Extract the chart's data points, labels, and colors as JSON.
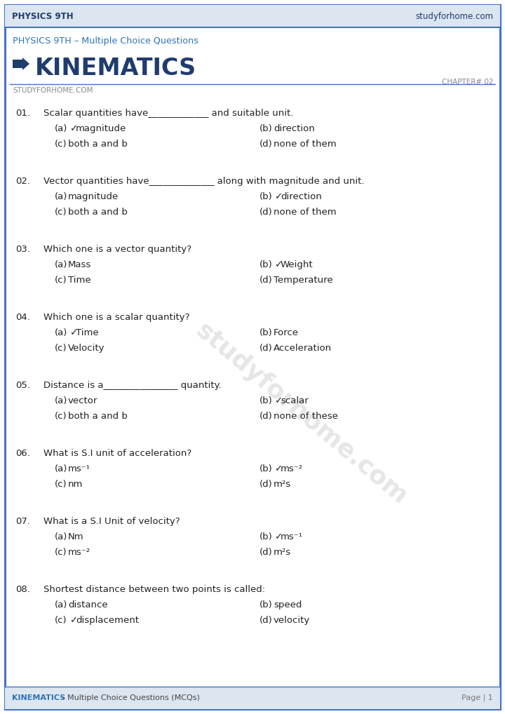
{
  "bg_color": "#ffffff",
  "border_color": "#4472c4",
  "top_bar_bg": "#dce6f1",
  "top_bar_text_left": "PHYSICS 9TH",
  "top_bar_text_right": "studyforhome.com",
  "top_bar_color": "#1f3c6e",
  "subtitle": "PHYSICS 9TH – Multiple Choice Questions",
  "subtitle_color": "#2e75b6",
  "title": "KINEMATICS",
  "title_color": "#1f3c6e",
  "arrow_color": "#1f3c6e",
  "chapter": "CHAPTER# 02",
  "chapter_color": "#888888",
  "website": "STUDYFORHOME.COM",
  "website_color": "#888888",
  "footer_left": "KINEMATICS",
  "footer_left_color": "#2e75b6",
  "footer_sep": " - Multiple Choice Questions (MCQs)",
  "footer_sep_color": "#444444",
  "footer_right": "Page | 1",
  "footer_right_color": "#777777",
  "watermark_text": "studyforhome.com",
  "watermark_color": "#c8c8c8",
  "q_color": "#222222",
  "q_num_color": "#222222",
  "check_mark": "✓",
  "questions": [
    {
      "num": "01.",
      "q": "Scalar quantities have_____________ and suitable unit.",
      "options": [
        {
          "label": "(a)",
          "check": true,
          "text": "magnitude"
        },
        {
          "label": "(b)",
          "check": false,
          "text": "direction"
        },
        {
          "label": "(c)",
          "check": false,
          "text": "both a and b"
        },
        {
          "label": "(d)",
          "check": false,
          "text": "none of them"
        }
      ]
    },
    {
      "num": "02.",
      "q": "Vector quantities have______________ along with magnitude and unit.",
      "options": [
        {
          "label": "(a)",
          "check": false,
          "text": "magnitude"
        },
        {
          "label": "(b)",
          "check": true,
          "text": "direction"
        },
        {
          "label": "(c)",
          "check": false,
          "text": "both a and b"
        },
        {
          "label": "(d)",
          "check": false,
          "text": "none of them"
        }
      ]
    },
    {
      "num": "03.",
      "q": "Which one is a vector quantity?",
      "options": [
        {
          "label": "(a)",
          "check": false,
          "text": "Mass"
        },
        {
          "label": "(b)",
          "check": true,
          "text": "Weight"
        },
        {
          "label": "(c)",
          "check": false,
          "text": "Time"
        },
        {
          "label": "(d)",
          "check": false,
          "text": "Temperature"
        }
      ]
    },
    {
      "num": "04.",
      "q": "Which one is a scalar quantity?",
      "options": [
        {
          "label": "(a)",
          "check": true,
          "text": "Time"
        },
        {
          "label": "(b)",
          "check": false,
          "text": "Force"
        },
        {
          "label": "(c)",
          "check": false,
          "text": "Velocity"
        },
        {
          "label": "(d)",
          "check": false,
          "text": "Acceleration"
        }
      ]
    },
    {
      "num": "05.",
      "q": "Distance is a________________ quantity.",
      "options": [
        {
          "label": "(a)",
          "check": false,
          "text": "vector"
        },
        {
          "label": "(b)",
          "check": true,
          "text": "scalar"
        },
        {
          "label": "(c)",
          "check": false,
          "text": "both a and b"
        },
        {
          "label": "(d)",
          "check": false,
          "text": "none of these"
        }
      ]
    },
    {
      "num": "06.",
      "q": "What is S.I unit of acceleration?",
      "options": [
        {
          "label": "(a)",
          "check": false,
          "text": "ms⁻¹"
        },
        {
          "label": "(b)",
          "check": true,
          "text": "ms⁻²"
        },
        {
          "label": "(c)",
          "check": false,
          "text": "nm"
        },
        {
          "label": "(d)",
          "check": false,
          "text": "m²s"
        }
      ]
    },
    {
      "num": "07.",
      "q": "What is a S.I Unit of velocity?",
      "options": [
        {
          "label": "(a)",
          "check": false,
          "text": "Nm"
        },
        {
          "label": "(b)",
          "check": true,
          "text": "ms⁻¹"
        },
        {
          "label": "(c)",
          "check": false,
          "text": "ms⁻²"
        },
        {
          "label": "(d)",
          "check": false,
          "text": "m²s"
        }
      ]
    },
    {
      "num": "08.",
      "q": "Shortest distance between two points is called:",
      "options": [
        {
          "label": "(a)",
          "check": false,
          "text": "distance"
        },
        {
          "label": "(b)",
          "check": false,
          "text": "speed"
        },
        {
          "label": "(c)",
          "check": true,
          "text": "displacement"
        },
        {
          "label": "(d)",
          "check": false,
          "text": "velocity"
        }
      ]
    }
  ]
}
